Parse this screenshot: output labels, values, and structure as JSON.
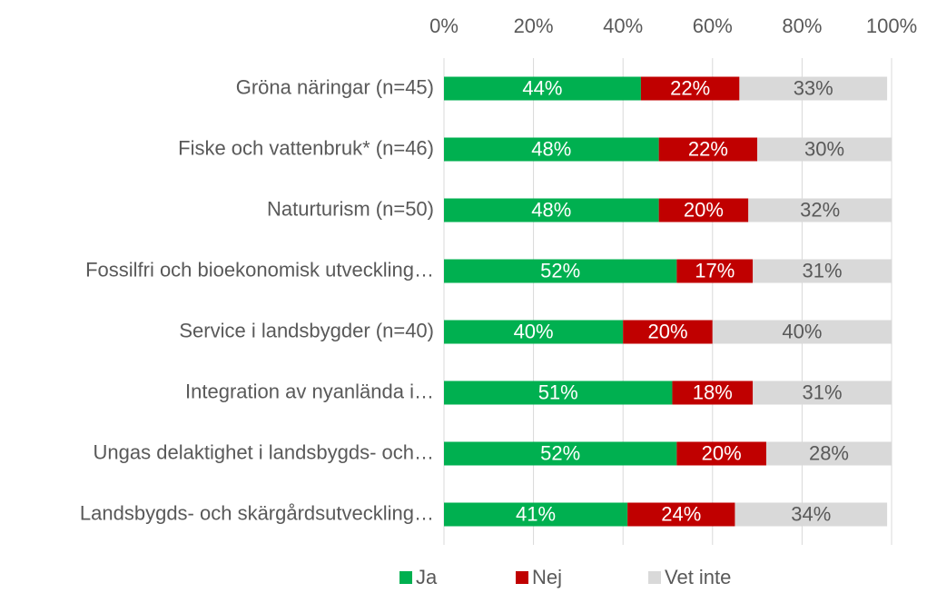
{
  "chart_data": {
    "type": "stacked-bar-horizontal",
    "categories": [
      "Gröna näringar (n=45)",
      "Fiske och vattenbruk* (n=46)",
      "Naturturism (n=50)",
      "Fossilfri och bioekonomisk utveckling…",
      "Service i landsbygder (n=40)",
      "Integration av nyanlända i…",
      "Ungas delaktighet i landsbygds- och…",
      "Landsbygds- och skärgårdsutveckling…"
    ],
    "series": [
      {
        "name": "Ja",
        "color": "#00b050",
        "values": [
          44,
          48,
          48,
          52,
          40,
          51,
          52,
          41
        ],
        "value_labels": [
          "44%",
          "48%",
          "48%",
          "52%",
          "40%",
          "51%",
          "52%",
          "41%"
        ]
      },
      {
        "name": "Nej",
        "color": "#c00000",
        "values": [
          22,
          22,
          20,
          17,
          20,
          18,
          20,
          24
        ],
        "value_labels": [
          "22%",
          "22%",
          "20%",
          "17%",
          "20%",
          "18%",
          "20%",
          "24%"
        ]
      },
      {
        "name": "Vet inte",
        "color": "#d9d9d9",
        "values": [
          33,
          30,
          32,
          31,
          40,
          31,
          28,
          34
        ],
        "value_labels": [
          "33%",
          "30%",
          "32%",
          "31%",
          "40%",
          "31%",
          "28%",
          "34%"
        ]
      }
    ],
    "xlim": [
      0,
      100
    ],
    "xticks": [
      {
        "value": 0,
        "label": "0%"
      },
      {
        "value": 20,
        "label": "20%"
      },
      {
        "value": 40,
        "label": "40%"
      },
      {
        "value": 60,
        "label": "60%"
      },
      {
        "value": 80,
        "label": "80%"
      },
      {
        "value": 100,
        "label": "100%"
      }
    ],
    "grid": true,
    "legend": "bottom"
  }
}
